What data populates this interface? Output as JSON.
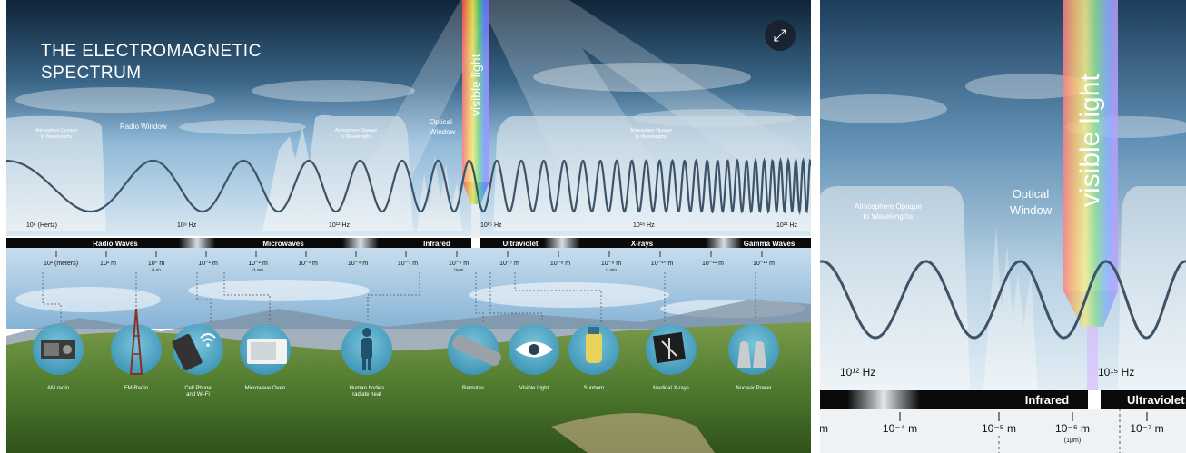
{
  "title_line1": "THE ELECTROMAGNETIC",
  "title_line2": "SPECTRUM",
  "expand_icon": "expand-arrows-icon",
  "windows": {
    "radio": "Radio Window",
    "optical_1": "Optical",
    "optical_2": "Window",
    "opaque_1": "Atmosphere Opaque",
    "opaque_2": "to Wavelengths",
    "visible": "visible light"
  },
  "freq": {
    "f1": "10⁶ (Hertz)",
    "f2": "10⁹ Hz",
    "f3": "10¹² Hz",
    "f4": "10¹⁵ Hz",
    "f5": "10¹⁸ Hz",
    "f6": "10²¹ Hz"
  },
  "bands": {
    "radio": "Radio Waves",
    "micro": "Microwaves",
    "ir": "Infrared",
    "uv": "Ultraviolet",
    "xray": "X-rays",
    "gamma": "Gamma Waves"
  },
  "wavelengths": {
    "w1": "10² (meters)",
    "w2": "10¹ m",
    "w3": "10⁰ m",
    "w3sub": "(1 m)",
    "w4": "10⁻¹ m",
    "w5": "10⁻² m",
    "w5sub": "(1 cm)",
    "w6": "10⁻³ m",
    "w7": "10⁻⁴ m",
    "w8": "10⁻⁵ m",
    "w9": "10⁻⁶ m",
    "w9sub": "(1μm)",
    "w10": "10⁻⁷ m",
    "w11": "10⁻⁸ m",
    "w12": "10⁻⁹ m",
    "w12sub": "(1 nm)",
    "w13": "10⁻¹⁰ m",
    "w14": "10⁻¹¹ m",
    "w15": "10⁻¹² m"
  },
  "examples": {
    "am": "AM radio",
    "fm": "FM Radio",
    "cell1": "Cell Phone",
    "cell2": "and Wi-Fi",
    "oven": "Microwave Oven",
    "body1": "Human bodies",
    "body2": "radiate heat",
    "remotes": "Remotes",
    "light": "Visible Light",
    "sun": "Sunburn",
    "xray": "Medical X-rays",
    "nuclear": "Nuclear Power"
  },
  "zoom": {
    "opaque_1": "Atmosphere Opaque",
    "opaque_2": "to Wavelengths",
    "optical_1": "Optical",
    "optical_2": "Window",
    "visible": "visible light",
    "f3": "10¹² Hz",
    "f4": "10¹⁵ Hz",
    "ir": "Infrared",
    "uv": "Ultraviolet",
    "w_m": "m",
    "w7": "10⁻⁴ m",
    "w8": "10⁻⁵ m",
    "w9": "10⁻⁶ m",
    "w9sub": "(1μm)",
    "w10": "10⁻⁷ m"
  },
  "colors": {
    "sky_top": "#0f2438",
    "sky_bottom": "#8fb8d8",
    "wave": "#3d5468",
    "band": "#0a0a0a",
    "icon_circle": "#5fb3cf"
  }
}
